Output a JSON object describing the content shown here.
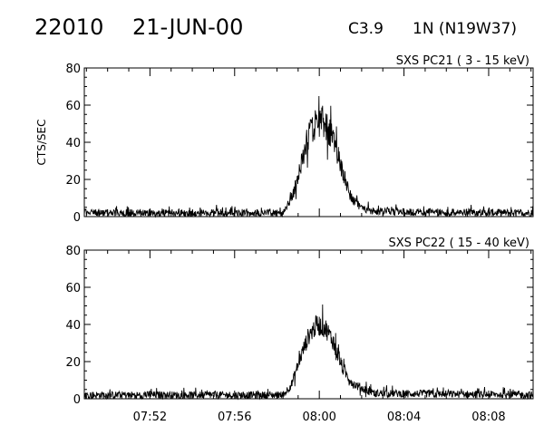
{
  "header": {
    "event_id": "22010",
    "date": "21-JUN-00",
    "flare_class": "C3.9",
    "location": "1N (N19W37)"
  },
  "chart_data": [
    {
      "type": "line",
      "title": "SXS PC21  (  3 - 15 keV)",
      "ylabel": "CTS/SEC",
      "xlabel": "",
      "x_unit": "minutes after 07:52",
      "xlim": [
        -3.1,
        18.1
      ],
      "ylim": [
        0,
        80
      ],
      "yticks": [
        "0",
        "20",
        "40",
        "60",
        "80"
      ],
      "xticks": [
        {
          "value": 0,
          "label": ""
        },
        {
          "value": 4,
          "label": ""
        },
        {
          "value": 8,
          "label": ""
        },
        {
          "value": 12,
          "label": ""
        },
        {
          "value": 16,
          "label": ""
        }
      ],
      "series": [
        {
          "style": "noisy",
          "profile": [
            [
              -3.1,
              2
            ],
            [
              6.3,
              2
            ],
            [
              6.7,
              10
            ],
            [
              7.1,
              26
            ],
            [
              7.5,
              44
            ],
            [
              7.9,
              52
            ],
            [
              8.3,
              50
            ],
            [
              8.7,
              40
            ],
            [
              9.1,
              24
            ],
            [
              9.5,
              10
            ],
            [
              10.0,
              4
            ],
            [
              11.0,
              2.5
            ],
            [
              18.1,
              2
            ]
          ],
          "noise_base": 4,
          "noise_peak": 18
        }
      ]
    },
    {
      "type": "line",
      "title": "SXS PC22  ( 15 - 40 keV)",
      "ylabel": "",
      "xlabel": "",
      "x_unit": "minutes after 07:52",
      "xlim": [
        -3.1,
        18.1
      ],
      "ylim": [
        0,
        80
      ],
      "yticks": [
        "0",
        "20",
        "40",
        "60",
        "80"
      ],
      "xticks": [
        {
          "value": 0,
          "label": "07:52"
        },
        {
          "value": 4,
          "label": "07:56"
        },
        {
          "value": 8,
          "label": "08:00"
        },
        {
          "value": 12,
          "label": "08:04"
        },
        {
          "value": 16,
          "label": "08:08"
        }
      ],
      "series": [
        {
          "style": "noisy",
          "profile": [
            [
              -3.1,
              2
            ],
            [
              6.3,
              2
            ],
            [
              6.7,
              8
            ],
            [
              7.1,
              22
            ],
            [
              7.5,
              34
            ],
            [
              7.9,
              40
            ],
            [
              8.3,
              38
            ],
            [
              8.7,
              30
            ],
            [
              9.1,
              16
            ],
            [
              9.6,
              8
            ],
            [
              10.5,
              3
            ],
            [
              18.1,
              2
            ]
          ],
          "noise_base": 4,
          "noise_peak": 14
        }
      ]
    }
  ]
}
